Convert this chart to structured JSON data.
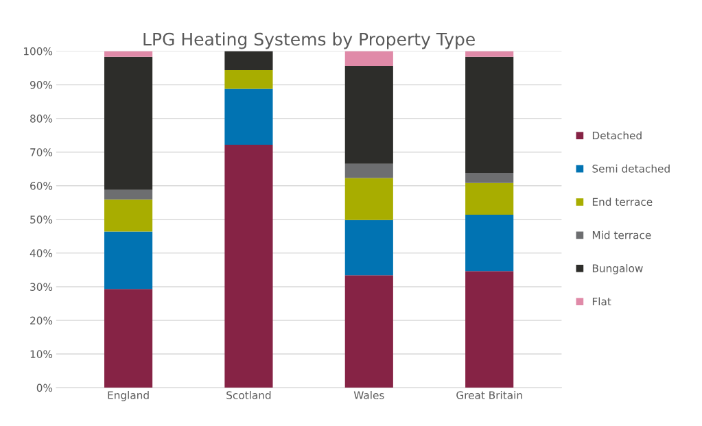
{
  "chart_data": {
    "type": "bar",
    "title": "LPG Heating Systems by Property Type",
    "stacked": true,
    "categories": [
      "England",
      "Scotland",
      "Wales",
      "Great Britain"
    ],
    "series": [
      {
        "name": "Detached",
        "color": "#862345",
        "values": [
          29.3,
          72.2,
          33.4,
          34.6
        ]
      },
      {
        "name": "Semi detached",
        "color": "#0173b2",
        "values": [
          17.1,
          16.6,
          16.4,
          16.8
        ]
      },
      {
        "name": "End terrace",
        "color": "#a8ad00",
        "values": [
          9.5,
          5.6,
          12.5,
          9.4
        ]
      },
      {
        "name": "Mid terrace",
        "color": "#6d6e70",
        "values": [
          2.9,
          0,
          4.2,
          3.0
        ]
      },
      {
        "name": "Bungalow",
        "color": "#2d2d2a",
        "values": [
          39.5,
          5.6,
          29.1,
          34.5
        ]
      },
      {
        "name": "Flat",
        "color": "#e08aa8",
        "values": [
          1.7,
          0,
          4.4,
          1.7
        ]
      }
    ],
    "ylim": [
      0,
      100
    ],
    "yticks": [
      {
        "value": 0,
        "label": "0%"
      },
      {
        "value": 10,
        "label": "10%"
      },
      {
        "value": 20,
        "label": "20%"
      },
      {
        "value": 30,
        "label": "30%"
      },
      {
        "value": 40,
        "label": "40%"
      },
      {
        "value": 50,
        "label": "50%"
      },
      {
        "value": 60,
        "label": "60%"
      },
      {
        "value": 70,
        "label": "70%"
      },
      {
        "value": 80,
        "label": "80%"
      },
      {
        "value": 90,
        "label": "90%"
      },
      {
        "value": 100,
        "label": "100%"
      }
    ],
    "grid": "y",
    "legend": "right"
  }
}
